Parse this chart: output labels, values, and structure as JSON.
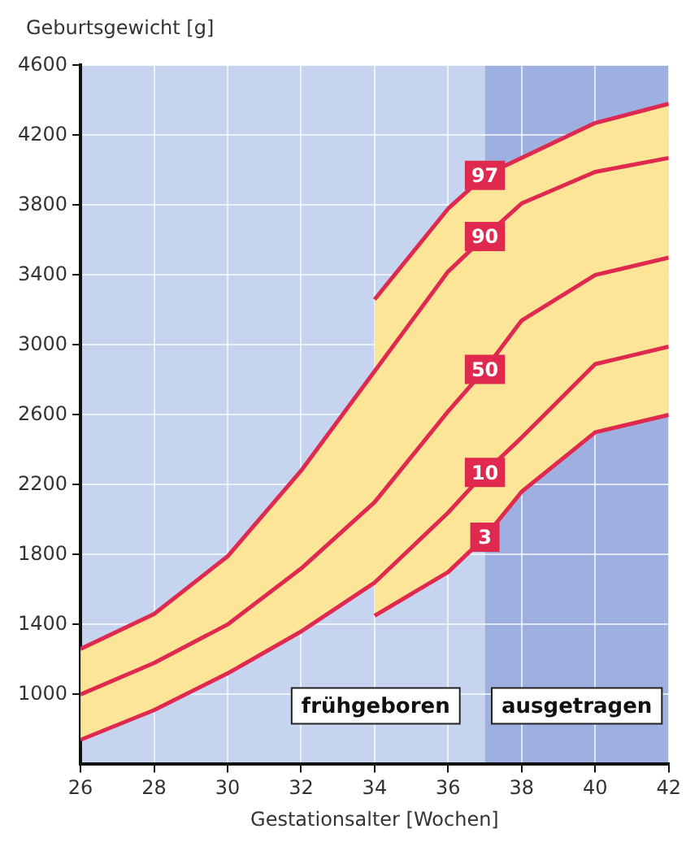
{
  "chart_data": {
    "type": "line",
    "ylabel": "Geburtsgewicht [g]",
    "xlabel": "Gestationsalter [Wochen]",
    "xlim": [
      26,
      42
    ],
    "xticks": [
      26,
      28,
      30,
      32,
      34,
      36,
      38,
      40,
      42
    ],
    "ylim": [
      600,
      4600
    ],
    "yticks": [
      1000,
      1400,
      1800,
      2200,
      2600,
      3000,
      3400,
      3800,
      4200,
      4600
    ],
    "grid": true,
    "legend": false,
    "marker": "none",
    "line_style": "solid",
    "series": [
      {
        "name": "97",
        "color": "#e0294f",
        "x": [
          34,
          36,
          37,
          38,
          40,
          42
        ],
        "values": [
          3260,
          3780,
          3970,
          4070,
          4270,
          4380
        ]
      },
      {
        "name": "90",
        "color": "#e0294f",
        "x": [
          26,
          28,
          30,
          32,
          34,
          36,
          37,
          38,
          40,
          42
        ],
        "values": [
          1260,
          1460,
          1790,
          2280,
          2850,
          3420,
          3620,
          3810,
          3990,
          4070
        ]
      },
      {
        "name": "50",
        "color": "#e0294f",
        "x": [
          26,
          28,
          30,
          32,
          34,
          34,
          36,
          37,
          38,
          40,
          42
        ],
        "values": [
          1000,
          1180,
          1400,
          1720,
          2100,
          2100,
          2620,
          2860,
          3140,
          3400,
          3500
        ],
        "upper": [
          1260,
          1460,
          1790,
          2280,
          2850,
          3260,
          3780,
          3970,
          4070,
          4270,
          4380
        ],
        "lower": [
          740,
          910,
          1120,
          1360,
          1640,
          1450,
          1700,
          1900,
          2160,
          2500,
          2600
        ]
      },
      {
        "name": "10",
        "color": "#e0294f",
        "x": [
          26,
          28,
          30,
          32,
          34,
          36,
          37,
          38,
          40,
          42
        ],
        "values": [
          740,
          910,
          1120,
          1360,
          1640,
          2040,
          2270,
          2470,
          2890,
          2990
        ]
      },
      {
        "name": "3",
        "color": "#e0294f",
        "x": [
          34,
          36,
          37,
          38,
          40,
          42
        ],
        "values": [
          1450,
          1700,
          1900,
          2160,
          2500,
          2600
        ]
      }
    ],
    "bands": [
      {
        "axis": "x",
        "from": 26,
        "to": 37,
        "label": "frühgeboren",
        "color": "#c6d4f0"
      },
      {
        "axis": "x",
        "from": 37,
        "to": 42,
        "label": "ausgetragen",
        "color": "#9eb0e0"
      }
    ]
  }
}
